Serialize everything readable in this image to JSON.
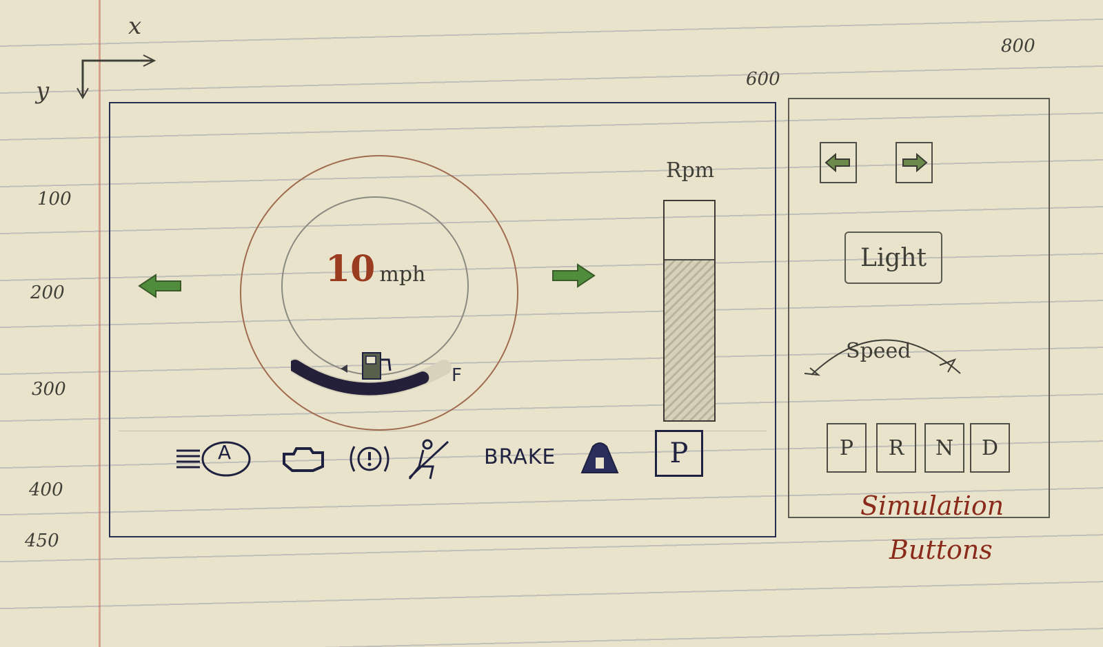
{
  "axes": {
    "x_label": "x",
    "y_label": "y",
    "y_ticks": [
      "100",
      "200",
      "300",
      "400",
      "450"
    ],
    "x_ticks": [
      "600",
      "800"
    ]
  },
  "dashboard": {
    "speed": {
      "value": "10",
      "unit": "mph"
    },
    "fuel": {
      "full_label": "F",
      "level_fraction": 0.85
    },
    "turn_signals": {
      "left_icon": "left-arrow-icon",
      "right_icon": "right-arrow-icon",
      "color": "#3e8a3a"
    },
    "rpm": {
      "label": "Rpm",
      "level_fraction": 0.73
    },
    "warnings": {
      "items": [
        "headlight-auto-icon",
        "engine-check-icon",
        "brake-fluid-icon",
        "seatbelt-icon",
        "brake-text",
        "door-open-icon",
        "parking-brake-icon"
      ],
      "brake_label": "BRAKE",
      "parking_label": "P",
      "auto_label": "A"
    }
  },
  "simulation": {
    "left_button_icon": "left-arrow-icon",
    "right_button_icon": "right-arrow-icon",
    "light_label": "Light",
    "speed_label": "Speed",
    "gears": [
      "P",
      "R",
      "N",
      "D"
    ],
    "caption_line1": "Simulation",
    "caption_line2": "Buttons"
  }
}
